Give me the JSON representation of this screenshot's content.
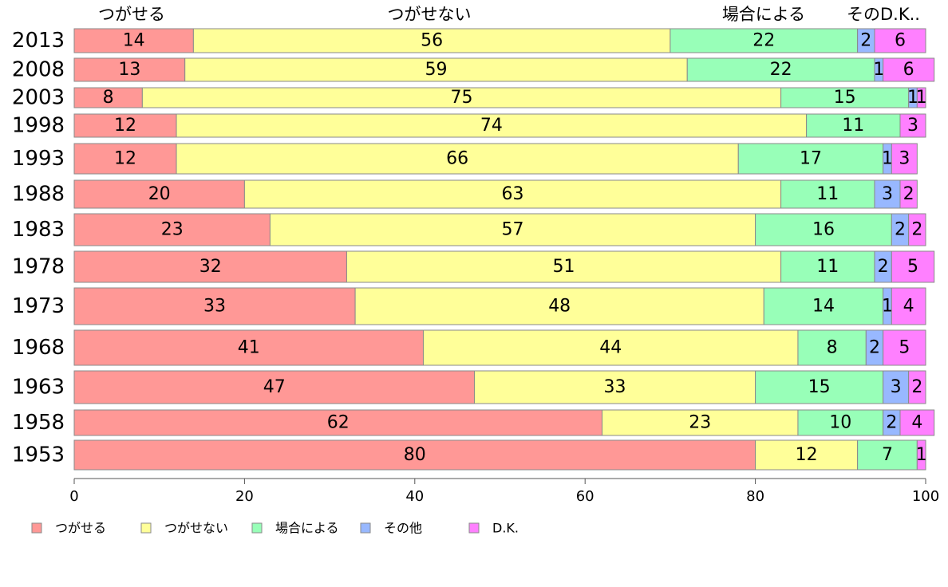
{
  "chart_data": {
    "type": "bar",
    "orientation": "horizontal",
    "stacked": true,
    "title": "",
    "xlabel": "",
    "ylabel": "",
    "xlim": [
      0,
      100
    ],
    "x_ticks": [
      0,
      20,
      40,
      60,
      80,
      100
    ],
    "grid": false,
    "legend_position": "bottom",
    "top_category_labels": [
      "つがせる",
      "つがせない",
      "場合による",
      "そのD.K.."
    ],
    "categories": [
      "2013",
      "2008",
      "2003",
      "1998",
      "1993",
      "1988",
      "1983",
      "1978",
      "1973",
      "1968",
      "1963",
      "1958",
      "1953"
    ],
    "series": [
      {
        "name": "つがせる",
        "color": "#ff9896",
        "values": [
          14,
          13,
          8,
          12,
          12,
          20,
          23,
          32,
          33,
          41,
          47,
          62,
          80
        ]
      },
      {
        "name": "つがせない",
        "color": "#ffff99",
        "values": [
          56,
          59,
          75,
          74,
          66,
          63,
          57,
          51,
          48,
          44,
          33,
          23,
          12
        ]
      },
      {
        "name": "場合による",
        "color": "#98ffb8",
        "values": [
          22,
          22,
          15,
          11,
          17,
          11,
          16,
          11,
          14,
          8,
          15,
          10,
          7
        ]
      },
      {
        "name": "その他",
        "color": "#98b8ff",
        "values": [
          2,
          1,
          1,
          0,
          1,
          3,
          2,
          2,
          1,
          2,
          3,
          2,
          0
        ]
      },
      {
        "name": "D.K.",
        "color": "#ff80ff",
        "values": [
          6,
          6,
          1,
          3,
          3,
          2,
          2,
          5,
          4,
          5,
          2,
          4,
          1
        ]
      }
    ]
  }
}
